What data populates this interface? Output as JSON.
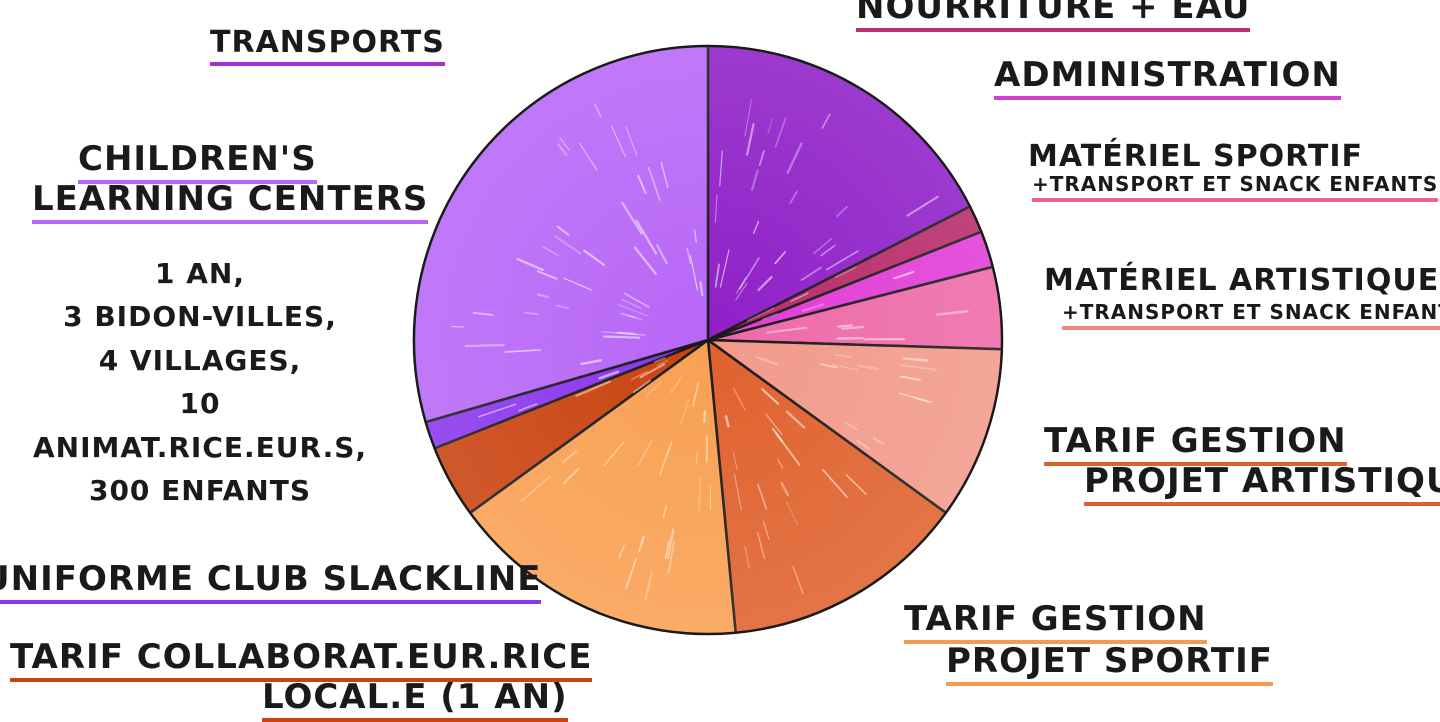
{
  "chart_data": {
    "type": "pie",
    "title": "",
    "start_angle_deg": 0,
    "direction": "clockwise",
    "slices": [
      {
        "label": "NOURRITURE + EAU",
        "value": 17.5,
        "color": "#8f1fc8"
      },
      {
        "label": "ADMINISTRATION",
        "value": 1.5,
        "color": "#b82a6a"
      },
      {
        "label": "MATÉRIEL SPORTIF",
        "sublabel": "+TRANSPORT ET SNACK ENFANTS",
        "value": 2.0,
        "color": "#e23bd6"
      },
      {
        "label": "MATÉRIEL ARTISTIQUE",
        "sublabel": "+TRANSPORT ET SNACK ENFANTS",
        "value": 4.5,
        "color": "#ee6aa8"
      },
      {
        "label": "MATÉRIEL ARTISTIQUE",
        "sublabel": "+TRANSPORT ET SNACK ENFANTS",
        "value": 9.5,
        "color": "#f29a8a"
      },
      {
        "label": "TARIF GESTION PROJET ARTISTIQUE",
        "value": 13.5,
        "color": "#e0612d"
      },
      {
        "label": "TARIF GESTION PROJET SPORTIF",
        "value": 16.5,
        "color": "#f9a052"
      },
      {
        "label": "TARIF COLLABORAT.EUR.RICE LOCAL.E (1 AN)",
        "value": 4.0,
        "color": "#c9420f"
      },
      {
        "label": "UNIFORME CLUB SLACKLINE",
        "value": 1.5,
        "color": "#8a35ee"
      },
      {
        "label": "CHILDREN'S LEARNING CENTERS",
        "value": 29.5,
        "color": "#b866f7"
      }
    ]
  },
  "labels": {
    "nourriture": "NOURRITURE + EAU",
    "transports": "TRANSPORTS",
    "administration": "ADMINISTRATION",
    "materiel_sportif": "MATÉRIEL SPORTIF",
    "materiel_sportif_sub": "+TRANSPORT ET SNACK ENFANTS",
    "materiel_artistique": "MATÉRIEL ARTISTIQUE",
    "materiel_artistique_sub": "+TRANSPORT ET SNACK ENFANTS",
    "tarif_artistique_1": "TARIF GESTION",
    "tarif_artistique_2": "PROJET ARTISTIQUE",
    "tarif_sportif_1": "TARIF GESTION",
    "tarif_sportif_2": "PROJET SPORTIF",
    "clc_1": "CHILDREN'S",
    "clc_2": "LEARNING CENTERS",
    "clc_details": [
      "1 AN,",
      "3 BIDON-VILLES,",
      "4 VILLAGES,",
      "10 ANIMAT.RICE.EUR.S,",
      "300 ENFANTS"
    ],
    "uniforme": "UNIFORME CLUB SLACKLINE",
    "collab_1": "TARIF COLLABORAT.EUR.RICE",
    "collab_2": "LOCAL.E (1 AN)"
  },
  "colors": {
    "underline_nourriture": "#c02e74",
    "underline_transports": "#a030d8",
    "underline_administration": "#d43fcf",
    "underline_sportif": "#ec5f95",
    "underline_artistique": "#f08a80",
    "underline_tarif_artistique": "#e0612d",
    "underline_tarif_sportif": "#f59a4e",
    "underline_clc": "#b866f7",
    "underline_uniforme": "#8a35ee",
    "underline_collab": "#c9420f"
  }
}
